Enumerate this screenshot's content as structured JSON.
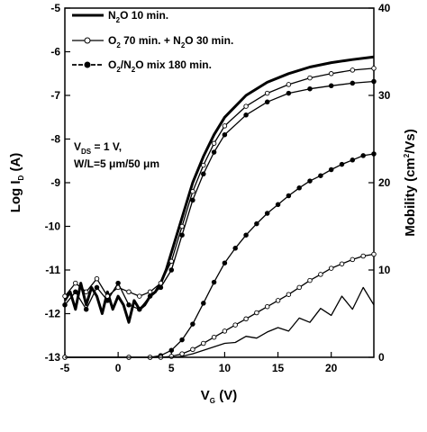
{
  "chart_data": {
    "type": "line",
    "x_axis": {
      "label": "V",
      "label_sub": "G",
      "label_tail": " (V)",
      "range": [
        -5,
        24
      ],
      "ticks": [
        -5,
        0,
        5,
        10,
        15,
        20
      ]
    },
    "y_left": {
      "label_pre": "Log I",
      "label_sub": "D",
      "label_tail": " (A)",
      "range": [
        -13,
        -5
      ],
      "ticks": [
        -13,
        -12,
        -11,
        -10,
        -9,
        -8,
        -7,
        -6,
        -5
      ]
    },
    "y_right": {
      "label_pre": "Mobility (cm",
      "label_sup": "2",
      "label_tail": "/Vs)",
      "range": [
        0,
        40
      ],
      "ticks": [
        0,
        10,
        20,
        30,
        40
      ]
    },
    "annotation": {
      "line1_pre": "V",
      "line1_sub": "DS",
      "line1_tail": " = 1 V,",
      "line2": "W/L=5 μm/50 μm"
    },
    "legend": [
      {
        "pre": "N",
        "sub1": "2",
        "mid": "O 10 min.",
        "sub2": "",
        "tail": "",
        "marker": "none"
      },
      {
        "pre": "O",
        "sub1": "2",
        "mid": " 70 min. + N",
        "sub2": "2",
        "tail": "O 30 min.",
        "marker": "open"
      },
      {
        "pre": "O",
        "sub1": "2",
        "mid": "/N",
        "sub2": "2",
        "tail": "O mix 180 min.",
        "marker": "filled"
      }
    ],
    "series": [
      {
        "name": "N2O 10 min.",
        "axis": "left",
        "marker": "none",
        "style": "thick",
        "x": [
          -5,
          -4.5,
          -4,
          -3.5,
          -3,
          -2.5,
          -2,
          -1.5,
          -1,
          -0.5,
          0,
          0.5,
          1,
          1.5,
          2,
          2.5,
          3,
          3.5,
          4,
          4.5,
          5,
          6,
          7,
          8,
          9,
          10,
          12,
          14,
          16,
          18,
          20,
          22,
          24
        ],
        "y": [
          -11.7,
          -11.5,
          -11.9,
          -11.3,
          -11.8,
          -11.4,
          -11.6,
          -12.0,
          -11.5,
          -11.9,
          -11.6,
          -11.8,
          -12.2,
          -11.7,
          -11.9,
          -11.8,
          -11.6,
          -11.5,
          -11.3,
          -11.0,
          -10.6,
          -9.8,
          -9.0,
          -8.4,
          -7.9,
          -7.5,
          -7.0,
          -6.7,
          -6.5,
          -6.35,
          -6.25,
          -6.18,
          -6.12
        ]
      },
      {
        "name": "O2 70 min. + N2O 30 min.",
        "axis": "left",
        "marker": "open",
        "style": "thin",
        "x": [
          -5,
          -4,
          -3,
          -2,
          -1,
          0,
          1,
          2,
          3,
          4,
          5,
          6,
          7,
          8,
          9,
          10,
          12,
          14,
          16,
          18,
          20,
          22,
          24
        ],
        "y": [
          -11.6,
          -11.3,
          -11.5,
          -11.2,
          -11.6,
          -11.4,
          -11.5,
          -11.6,
          -11.5,
          -11.3,
          -10.8,
          -10.0,
          -9.2,
          -8.6,
          -8.1,
          -7.7,
          -7.25,
          -6.95,
          -6.75,
          -6.6,
          -6.5,
          -6.42,
          -6.38
        ]
      },
      {
        "name": "O2/N2O mix 180 min.",
        "axis": "left",
        "marker": "filled",
        "style": "thin",
        "x": [
          -5,
          -4,
          -3,
          -2,
          -1,
          0,
          1,
          2,
          3,
          4,
          5,
          6,
          7,
          8,
          9,
          10,
          12,
          14,
          16,
          18,
          20,
          22,
          24
        ],
        "y": [
          -11.8,
          -11.5,
          -11.9,
          -11.4,
          -11.7,
          -11.3,
          -11.8,
          -11.9,
          -11.6,
          -11.4,
          -11.0,
          -10.2,
          -9.4,
          -8.8,
          -8.3,
          -7.9,
          -7.45,
          -7.15,
          -6.95,
          -6.85,
          -6.78,
          -6.72,
          -6.68
        ]
      },
      {
        "name": "O2/N2O mix 180 min.",
        "axis": "right",
        "marker": "filled",
        "style": "thin",
        "x": [
          -5,
          1,
          3,
          4,
          5,
          6,
          7,
          8,
          9,
          10,
          11,
          12,
          13,
          14,
          15,
          16,
          17,
          18,
          19,
          20,
          21,
          22,
          23,
          24
        ],
        "y": [
          0,
          0,
          0,
          0.2,
          0.8,
          2.0,
          3.8,
          6.2,
          8.6,
          10.8,
          12.5,
          14.0,
          15.3,
          16.5,
          17.5,
          18.5,
          19.4,
          20.2,
          20.8,
          21.5,
          22.1,
          22.6,
          23.1,
          23.3
        ]
      },
      {
        "name": "O2 70 min. + N2O 30 min.",
        "axis": "right",
        "marker": "open",
        "style": "thin",
        "x": [
          -5,
          1,
          3,
          4,
          5,
          6,
          7,
          8,
          9,
          10,
          11,
          12,
          13,
          14,
          15,
          16,
          17,
          18,
          19,
          20,
          21,
          22,
          23,
          24
        ],
        "y": [
          0,
          0,
          0,
          0,
          0.1,
          0.4,
          0.9,
          1.6,
          2.3,
          3.0,
          3.7,
          4.4,
          5.1,
          5.8,
          6.5,
          7.2,
          8.0,
          8.8,
          9.5,
          10.2,
          10.7,
          11.2,
          11.6,
          11.8
        ]
      },
      {
        "name": "N2O 10 min.",
        "axis": "right",
        "marker": "none",
        "style": "thin",
        "x": [
          -5,
          1,
          5,
          6,
          7,
          8,
          9,
          10,
          11,
          12,
          13,
          14,
          15,
          16,
          17,
          18,
          19,
          20,
          21,
          22,
          23,
          24
        ],
        "y": [
          0,
          0,
          0,
          0.1,
          0.4,
          0.8,
          1.2,
          1.6,
          1.7,
          2.4,
          2.2,
          2.9,
          3.4,
          3.0,
          4.5,
          4.0,
          5.6,
          4.8,
          7.0,
          5.5,
          8.0,
          6.0
        ]
      }
    ]
  }
}
